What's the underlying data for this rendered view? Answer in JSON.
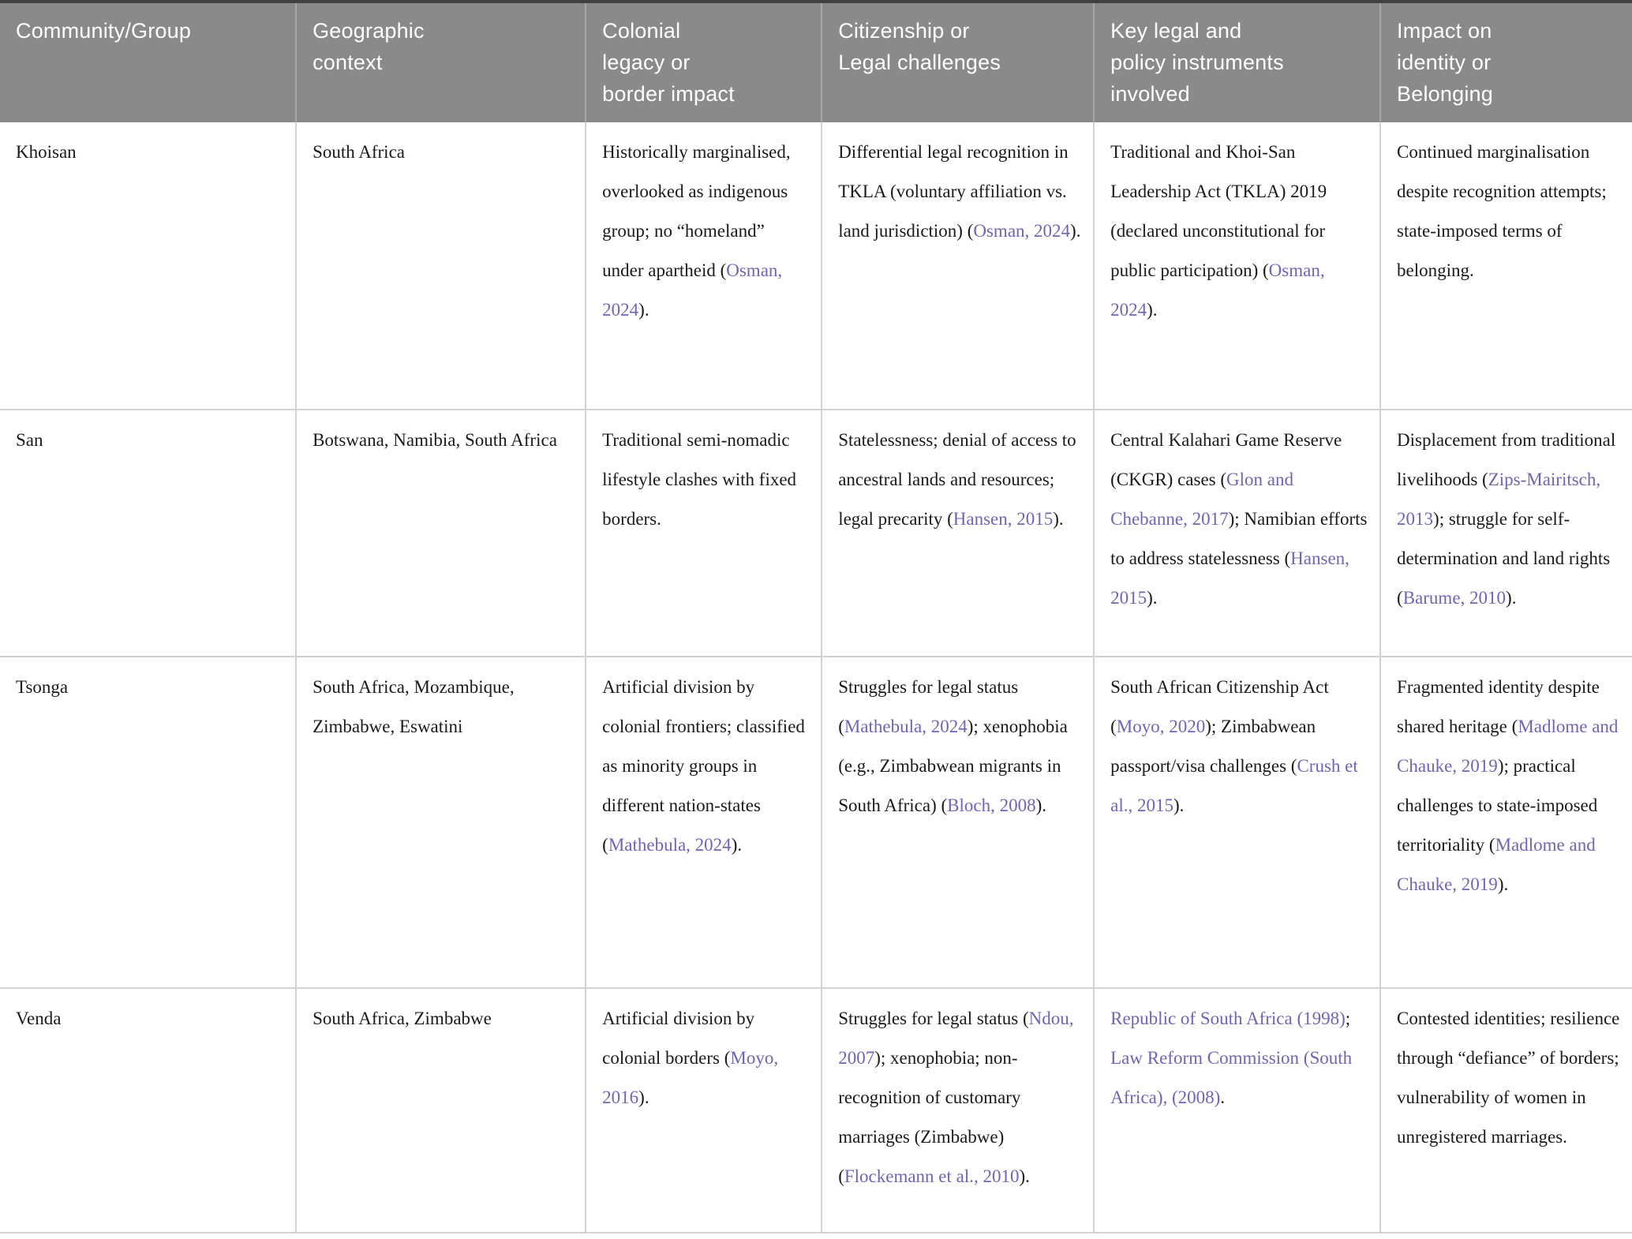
{
  "theme": {
    "header_bg": "#8a8a8a",
    "header_text": "#ffffff",
    "body_text": "#1a1a1a",
    "link_color": "#6e66b4",
    "grid_line": "#d2d2d2",
    "header_divider": "#a6a6a6",
    "top_border": "#404040"
  },
  "table": {
    "columns": [
      "Community/Group",
      "Geographic\ncontext",
      "Colonial\nlegacy or\nborder impact",
      "Citizenship or\nLegal challenges",
      "Key legal and\npolicy instruments\ninvolved",
      "Impact on\nidentity or\nBelonging"
    ],
    "rows": [
      {
        "id": "khoisan",
        "cells": [
          [
            {
              "t": "Khoisan"
            }
          ],
          [
            {
              "t": "South Africa"
            }
          ],
          [
            {
              "t": "Historically marginalised, overlooked as indigenous group; no “homeland” under apartheid ("
            },
            {
              "t": "Osman, 2024",
              "link": true
            },
            {
              "t": ")."
            }
          ],
          [
            {
              "t": "Differential legal recognition in TKLA (voluntary affiliation vs. land jurisdiction) ("
            },
            {
              "t": "Osman, 2024",
              "link": true
            },
            {
              "t": ")."
            }
          ],
          [
            {
              "t": "Traditional and Khoi-San Leadership Act (TKLA) 2019 (declared unconstitutional for public participation) ("
            },
            {
              "t": "Osman, 2024",
              "link": true
            },
            {
              "t": ")."
            }
          ],
          [
            {
              "t": "Continued marginalisation despite recognition attempts; state-imposed terms of belonging."
            }
          ]
        ]
      },
      {
        "id": "san",
        "cells": [
          [
            {
              "t": "San"
            }
          ],
          [
            {
              "t": "Botswana, Namibia, South Africa"
            }
          ],
          [
            {
              "t": "Traditional semi-nomadic lifestyle clashes with fixed borders."
            }
          ],
          [
            {
              "t": "Statelessness; denial of access to ancestral lands and resources; legal precarity ("
            },
            {
              "t": "Hansen, 2015",
              "link": true
            },
            {
              "t": ")."
            }
          ],
          [
            {
              "t": "Central Kalahari Game Reserve (CKGR) cases ("
            },
            {
              "t": "Glon and Chebanne, 2017",
              "link": true
            },
            {
              "t": "); Namibian efforts to address statelessness ("
            },
            {
              "t": "Hansen, 2015",
              "link": true
            },
            {
              "t": ")."
            }
          ],
          [
            {
              "t": "Displacement from traditional livelihoods ("
            },
            {
              "t": "Zips-Mairitsch, 2013",
              "link": true
            },
            {
              "t": "); struggle for self-determination and land rights ("
            },
            {
              "t": "Barume, 2010",
              "link": true
            },
            {
              "t": ")."
            }
          ]
        ]
      },
      {
        "id": "tsonga",
        "cells": [
          [
            {
              "t": "Tsonga"
            }
          ],
          [
            {
              "t": "South Africa, Mozambique, Zimbabwe, Eswatini"
            }
          ],
          [
            {
              "t": "Artificial division by colonial frontiers; classified as minority groups in different nation-states ("
            },
            {
              "t": "Mathebula, 2024",
              "link": true
            },
            {
              "t": ")."
            }
          ],
          [
            {
              "t": "Struggles for legal status ("
            },
            {
              "t": "Mathebula, 2024",
              "link": true
            },
            {
              "t": "); xenophobia (e.g., Zimbabwean migrants in South Africa) ("
            },
            {
              "t": "Bloch, 2008",
              "link": true
            },
            {
              "t": ")."
            }
          ],
          [
            {
              "t": "South African Citizenship Act ("
            },
            {
              "t": "Moyo, 2020",
              "link": true
            },
            {
              "t": "); Zimbabwean passport/visa challenges ("
            },
            {
              "t": "Crush et al., 2015",
              "link": true
            },
            {
              "t": ")."
            }
          ],
          [
            {
              "t": "Fragmented identity despite shared heritage ("
            },
            {
              "t": "Madlome and Chauke, 2019",
              "link": true
            },
            {
              "t": "); practical challenges to state-imposed territoriality ("
            },
            {
              "t": "Madlome and Chauke, 2019",
              "link": true
            },
            {
              "t": ")."
            }
          ]
        ]
      },
      {
        "id": "venda",
        "cells": [
          [
            {
              "t": "Venda"
            }
          ],
          [
            {
              "t": "South Africa, Zimbabwe"
            }
          ],
          [
            {
              "t": "Artificial division by colonial borders ("
            },
            {
              "t": "Moyo, 2016",
              "link": true
            },
            {
              "t": ")."
            }
          ],
          [
            {
              "t": "Struggles for legal status ("
            },
            {
              "t": "Ndou, 2007",
              "link": true
            },
            {
              "t": "); xenophobia; non-recognition of customary marriages (Zimbabwe) ("
            },
            {
              "t": "Flockemann et al., 2010",
              "link": true
            },
            {
              "t": ")."
            }
          ],
          [
            {
              "t": "Republic of South Africa (1998)",
              "link": true
            },
            {
              "t": "; "
            },
            {
              "t": "Law Reform Commission (South Africa), (2008)",
              "link": true
            },
            {
              "t": "."
            }
          ],
          [
            {
              "t": "Contested identities; resilience through “defiance” of borders; vulnerability of women in unregistered marriages."
            }
          ]
        ]
      }
    ]
  }
}
